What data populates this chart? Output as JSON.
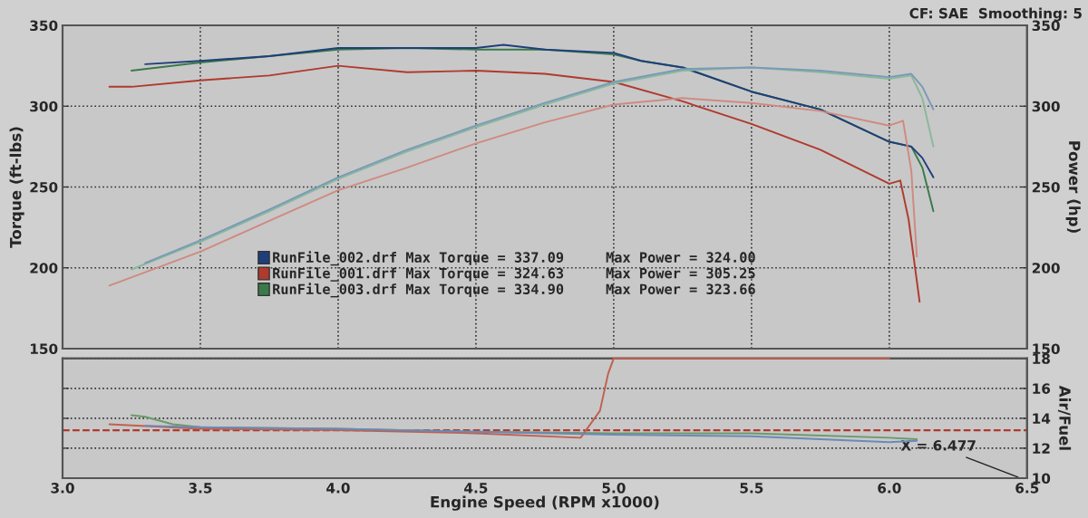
{
  "chart_data": [
    {
      "type": "line",
      "ylabel": "Torque (ft-lbs)",
      "y2label": "Power (hp)",
      "annotations": [
        "CF: SAE  Smoothing: 5"
      ],
      "xlim": [
        3,
        6.5
      ],
      "xticks": [
        {
          "value": 3.5,
          "label": null
        },
        {
          "value": 4,
          "label": null
        },
        {
          "value": 4.5,
          "label": null
        },
        {
          "value": 5,
          "label": null
        },
        {
          "value": 5.5,
          "label": null
        },
        {
          "value": 6,
          "label": null
        }
      ],
      "ylim": [
        150,
        350
      ],
      "yticks": [
        150,
        200,
        250,
        300,
        350
      ],
      "y2lim": [
        150,
        350
      ],
      "y2ticks": [
        150,
        200,
        250,
        300,
        350
      ],
      "tick_labels": "y",
      "grid": true,
      "legend": "bottom left",
      "line_style": "solid",
      "series": [
        {
          "name": "RunFile_002.drf Max Torque = 337.09     Max Power = 324.00",
          "color": "#1f3f7a",
          "x": [
            3.3,
            3.5,
            3.75,
            4.0,
            4.25,
            4.5,
            4.6,
            4.75,
            5.0,
            5.1,
            5.25,
            5.5,
            5.75,
            6.0,
            6.08,
            6.12,
            6.16
          ],
          "values": [
            326,
            328,
            331,
            336,
            336,
            336,
            338,
            335,
            333,
            328,
            324,
            309,
            298,
            278,
            275,
            268,
            256
          ]
        },
        {
          "name": "RunFile_001.drf Max Torque = 324.63     Max Power = 305.25",
          "color": "#b03a2e",
          "x": [
            3.17,
            3.25,
            3.5,
            3.75,
            4.0,
            4.25,
            4.5,
            4.75,
            5.0,
            5.25,
            5.5,
            5.75,
            6.0,
            6.04,
            6.07,
            6.11
          ],
          "values": [
            312,
            312,
            316,
            319,
            325,
            321,
            322,
            320,
            315,
            303,
            289,
            273,
            252,
            254,
            230,
            179
          ]
        },
        {
          "name": "RunFile_003.drf Max Torque = 334.90     Max Power = 323.66",
          "color": "#3a7a4a",
          "x": [
            3.25,
            3.5,
            3.75,
            4.0,
            4.25,
            4.5,
            4.75,
            5.0,
            5.1,
            5.25,
            5.5,
            5.75,
            6.0,
            6.08,
            6.12,
            6.16
          ],
          "values": [
            322,
            327,
            331,
            335,
            336,
            335,
            335,
            332,
            328,
            324,
            309,
            298,
            278,
            275,
            262,
            235
          ]
        },
        {
          "color": "#7a9ab8",
          "axis": "y2",
          "x": [
            3.3,
            3.5,
            3.75,
            4.0,
            4.25,
            4.5,
            4.75,
            5.0,
            5.25,
            5.5,
            5.75,
            6.0,
            6.08,
            6.12,
            6.16
          ],
          "values": [
            203,
            217,
            236,
            256,
            273,
            288,
            302,
            315,
            323,
            324,
            322,
            318,
            320,
            312,
            298
          ]
        },
        {
          "color": "#d08a80",
          "axis": "y2",
          "x": [
            3.17,
            3.5,
            3.75,
            4.0,
            4.25,
            4.5,
            4.75,
            5.0,
            5.25,
            5.5,
            5.75,
            6.0,
            6.05,
            6.08,
            6.1
          ],
          "values": [
            189,
            210,
            229,
            248,
            262,
            277,
            290,
            301,
            305,
            302,
            297,
            288,
            291,
            260,
            207
          ]
        },
        {
          "color": "#8ab89a",
          "axis": "y2",
          "x": [
            3.25,
            3.5,
            3.75,
            4.0,
            4.25,
            4.5,
            4.75,
            5.0,
            5.25,
            5.5,
            5.75,
            6.0,
            6.08,
            6.12,
            6.16
          ],
          "values": [
            199,
            216,
            235,
            255,
            272,
            287,
            301,
            314,
            322,
            324,
            321,
            317,
            319,
            305,
            275
          ]
        }
      ]
    },
    {
      "type": "line",
      "xlabel": "Engine Speed (RPM x1000)",
      "y2label": "Air/Fuel",
      "annotations": [
        "X = 6.477"
      ],
      "xlim": [
        3,
        6.5
      ],
      "xticks": [
        {
          "value": 3,
          "label": "3.0"
        },
        3.5,
        {
          "value": 4,
          "label": "4.0"
        },
        4.5,
        {
          "value": 5,
          "label": "5.0"
        },
        5.5,
        {
          "value": 6,
          "label": "6.0"
        },
        6.5
      ],
      "y2lim": [
        10,
        18
      ],
      "y2ticks": [
        10,
        12,
        14,
        16,
        18
      ],
      "grid": "y",
      "line_style": "solid",
      "ref_lines": [
        {
          "axis": "y2",
          "value": 13.2,
          "color": "#b03a2e",
          "line_style": "dashed"
        }
      ],
      "series": [
        {
          "color": "#6a8ab8",
          "axis": "y2",
          "x": [
            3.3,
            3.5,
            4.0,
            4.5,
            5.0,
            5.5,
            6.0,
            6.1
          ],
          "values": [
            13.5,
            13.4,
            13.3,
            13.1,
            12.9,
            12.8,
            12.4,
            12.5
          ]
        },
        {
          "color": "#c06050",
          "axis": "y2",
          "x": [
            3.17,
            3.5,
            4.0,
            4.5,
            4.88,
            4.95,
            4.98,
            5.0,
            5.5,
            6.0
          ],
          "values": [
            13.6,
            13.3,
            13.2,
            13.0,
            12.7,
            14.5,
            17.0,
            18,
            18,
            18
          ]
        },
        {
          "color": "#6a9a6a",
          "axis": "y2",
          "x": [
            3.25,
            3.3,
            3.4,
            3.5,
            4.0,
            4.5,
            5.0,
            5.5,
            6.0,
            6.1
          ],
          "values": [
            14.2,
            14.1,
            13.6,
            13.4,
            13.3,
            13.1,
            13.0,
            13.0,
            12.7,
            12.6
          ]
        }
      ]
    }
  ]
}
